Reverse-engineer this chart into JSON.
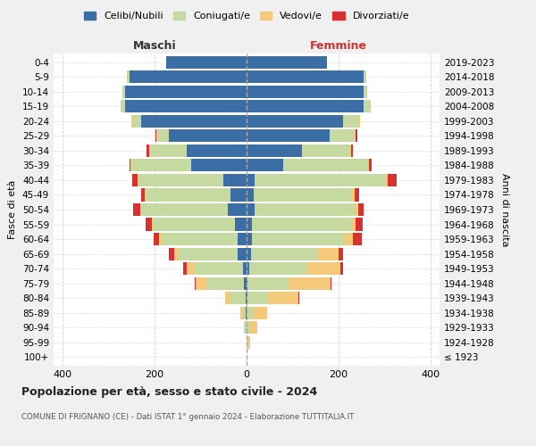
{
  "age_groups": [
    "100+",
    "95-99",
    "90-94",
    "85-89",
    "80-84",
    "75-79",
    "70-74",
    "65-69",
    "60-64",
    "55-59",
    "50-54",
    "45-49",
    "40-44",
    "35-39",
    "30-34",
    "25-29",
    "20-24",
    "15-19",
    "10-14",
    "5-9",
    "0-4"
  ],
  "birth_years": [
    "≤ 1923",
    "1924-1928",
    "1929-1933",
    "1934-1938",
    "1939-1943",
    "1944-1948",
    "1949-1953",
    "1954-1958",
    "1959-1963",
    "1964-1968",
    "1969-1973",
    "1974-1978",
    "1979-1983",
    "1984-1988",
    "1989-1993",
    "1994-1998",
    "1999-2003",
    "2004-2008",
    "2009-2013",
    "2014-2018",
    "2019-2023"
  ],
  "colors": {
    "celibi": "#3a6ea5",
    "coniugati": "#c5d9a0",
    "vedovi": "#f5c97a",
    "divorziati": "#d93030"
  },
  "maschi": {
    "celibi": [
      0,
      0,
      0,
      1,
      2,
      5,
      8,
      20,
      20,
      25,
      40,
      35,
      50,
      120,
      130,
      170,
      230,
      265,
      265,
      255,
      175
    ],
    "coniugati": [
      0,
      0,
      3,
      8,
      35,
      80,
      105,
      130,
      165,
      180,
      190,
      185,
      185,
      130,
      80,
      25,
      15,
      10,
      5,
      5,
      0
    ],
    "vedovi": [
      0,
      0,
      2,
      5,
      10,
      25,
      18,
      8,
      5,
      2,
      2,
      2,
      2,
      2,
      2,
      2,
      5,
      0,
      0,
      0,
      0
    ],
    "divorziati": [
      0,
      0,
      0,
      0,
      0,
      2,
      8,
      12,
      12,
      12,
      14,
      8,
      12,
      2,
      5,
      2,
      0,
      0,
      0,
      0,
      0
    ]
  },
  "femmine": {
    "celibi": [
      0,
      0,
      0,
      0,
      2,
      2,
      5,
      10,
      12,
      12,
      18,
      15,
      18,
      80,
      120,
      180,
      210,
      255,
      255,
      255,
      175
    ],
    "coniugati": [
      0,
      2,
      5,
      15,
      45,
      90,
      125,
      145,
      200,
      215,
      220,
      215,
      285,
      185,
      105,
      55,
      35,
      15,
      8,
      5,
      0
    ],
    "vedovi": [
      0,
      5,
      18,
      30,
      65,
      90,
      75,
      45,
      20,
      10,
      5,
      5,
      5,
      2,
      2,
      2,
      2,
      0,
      0,
      0,
      0
    ],
    "divorziati": [
      0,
      0,
      0,
      0,
      2,
      2,
      5,
      10,
      18,
      15,
      12,
      10,
      18,
      5,
      5,
      5,
      0,
      0,
      0,
      0,
      0
    ]
  },
  "xlim": [
    -420,
    420
  ],
  "xticks": [
    -400,
    -200,
    0,
    200,
    400
  ],
  "xticklabels": [
    "400",
    "200",
    "0",
    "200",
    "400"
  ],
  "title": "Popolazione per età, sesso e stato civile - 2024",
  "subtitle": "COMUNE DI FRIGNANO (CE) - Dati ISTAT 1° gennaio 2024 - Elaborazione TUTTITALIA.IT",
  "ylabel_left": "Fasce di età",
  "ylabel_right": "Anni di nascita",
  "label_maschi": "Maschi",
  "label_femmine": "Femmine",
  "legend_labels": [
    "Celibi/Nubili",
    "Coniugati/e",
    "Vedovi/e",
    "Divorziati/e"
  ],
  "bg_color": "#f0f0f0",
  "plot_bg_color": "#ffffff"
}
